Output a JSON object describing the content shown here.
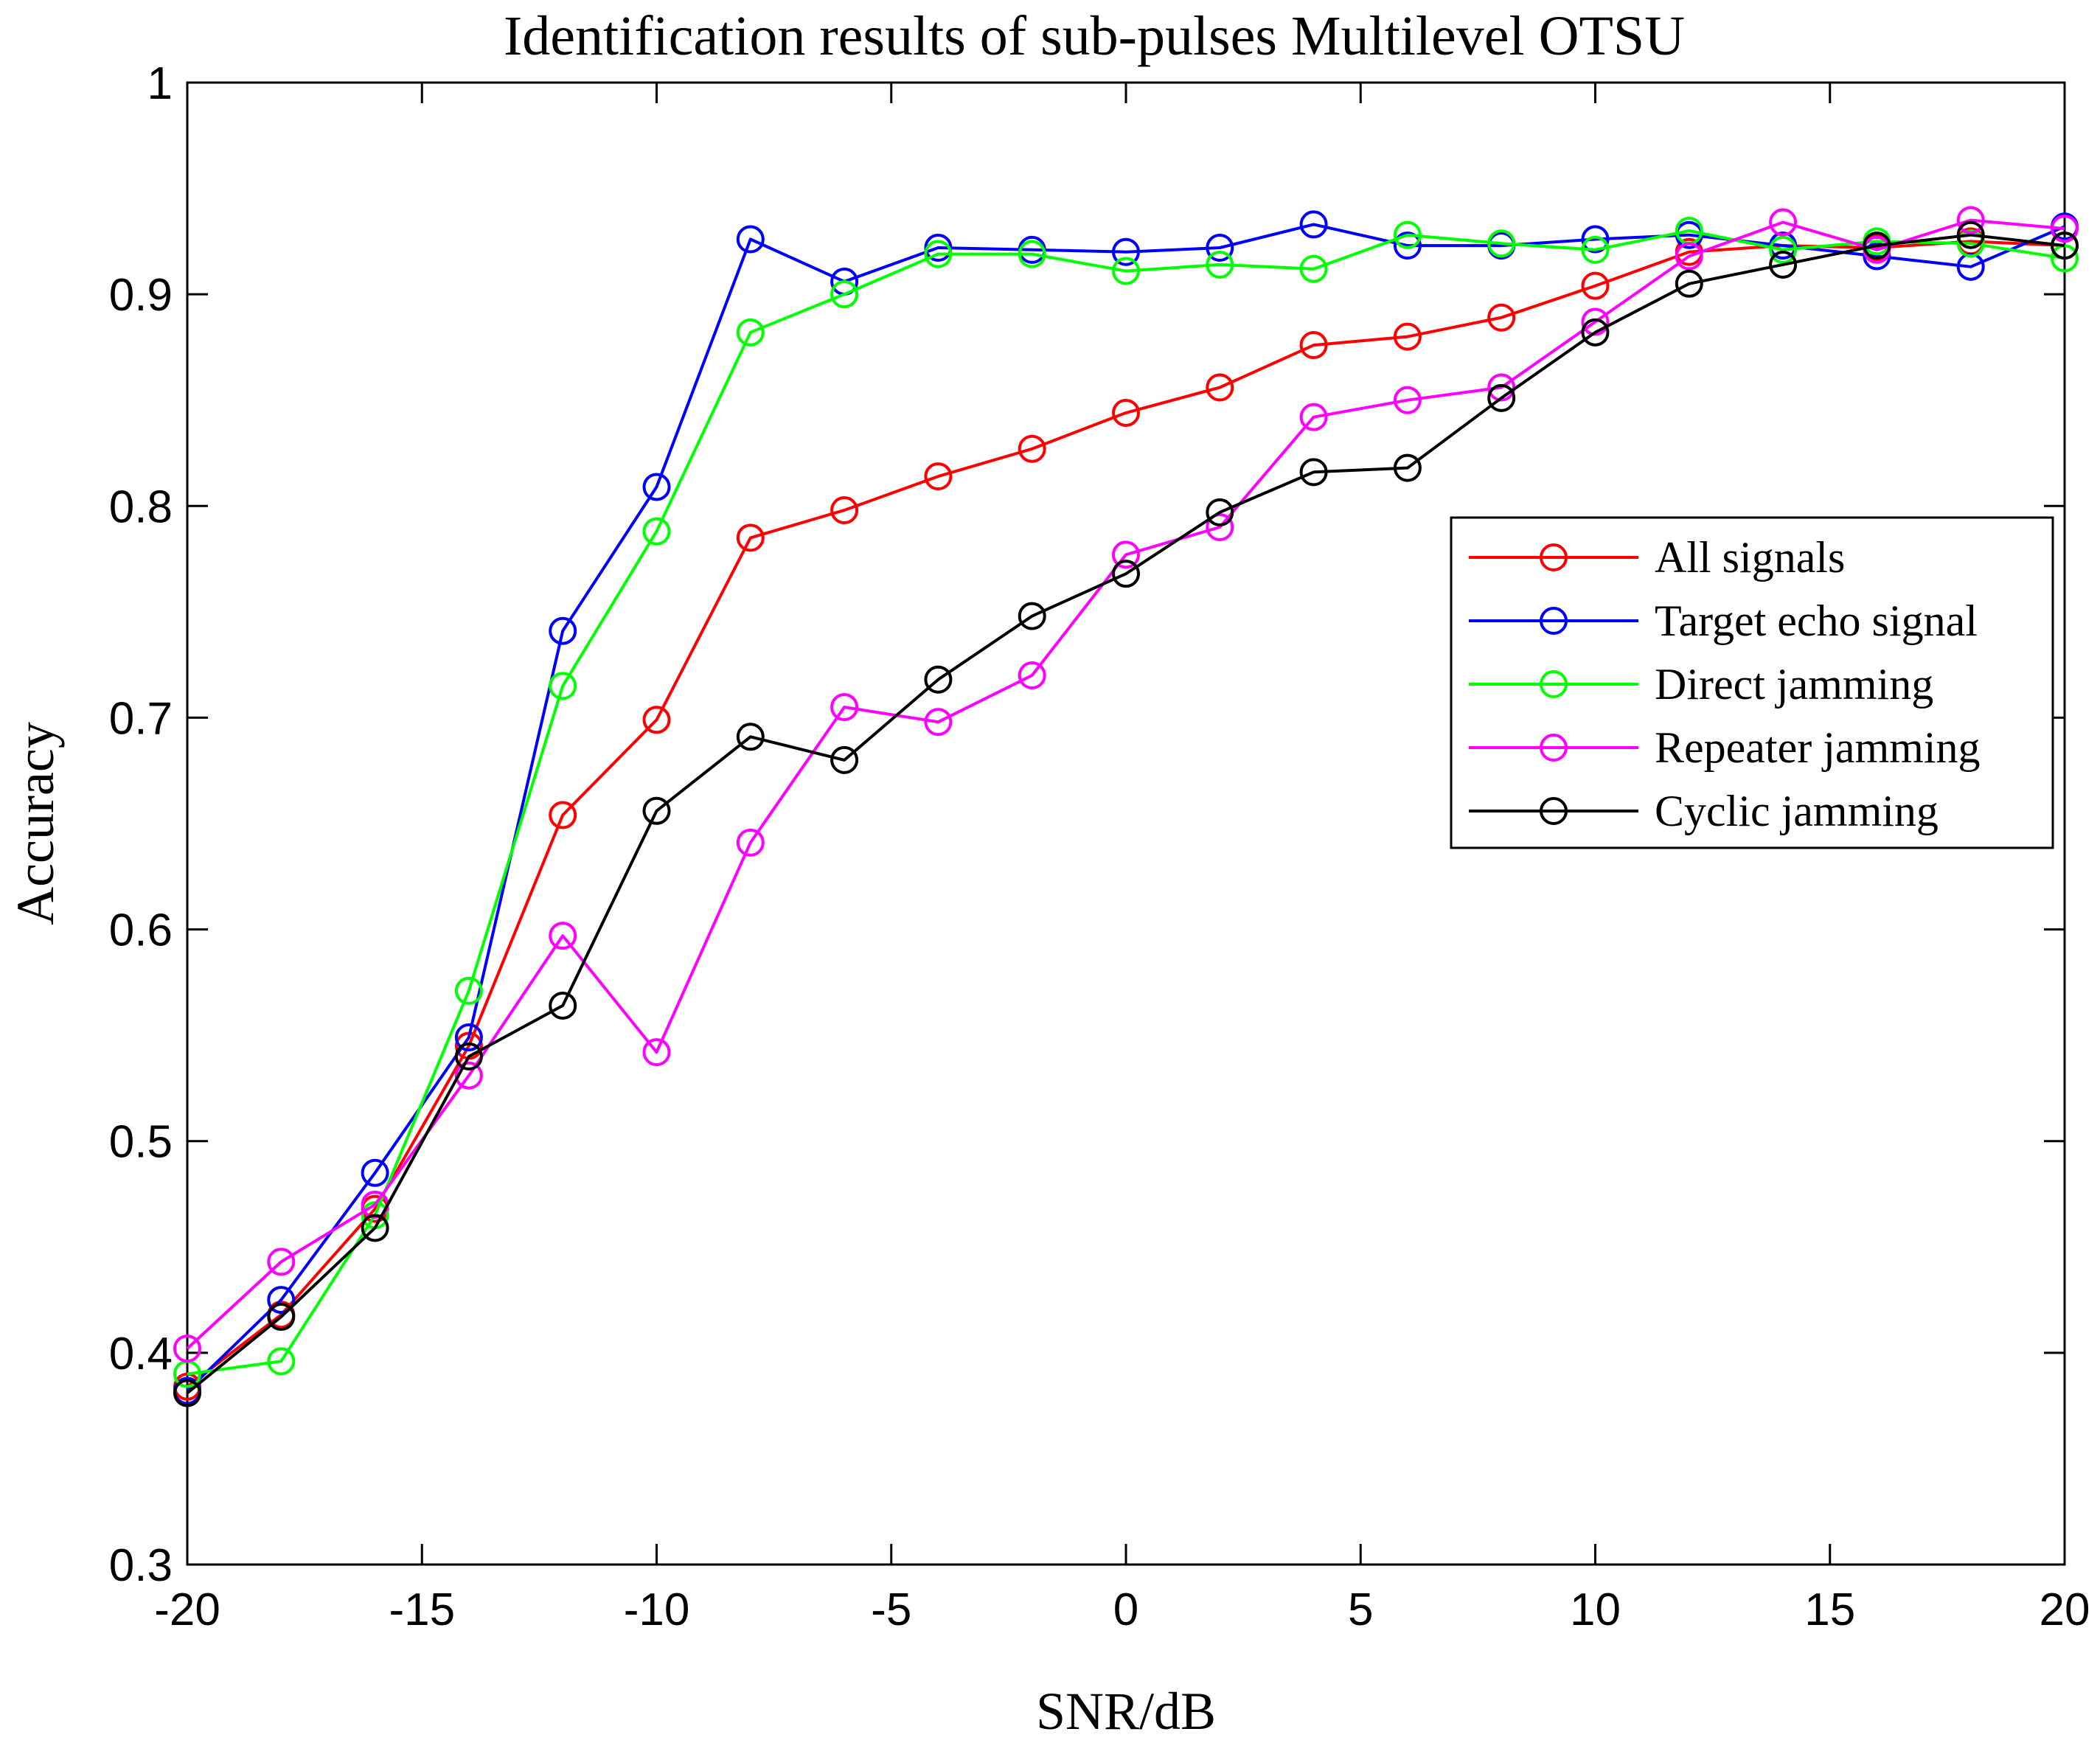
{
  "chart_data": {
    "type": "line",
    "title": "Identification results of sub-pulses Multilevel OTSU",
    "xlabel": "SNR/dB",
    "ylabel": "Accuracy",
    "xlim": [
      -20,
      20
    ],
    "ylim": [
      0.3,
      1
    ],
    "xticks": [
      -20,
      -15,
      -10,
      -5,
      0,
      5,
      10,
      15,
      20
    ],
    "xtick_labels": [
      "-20",
      "-15",
      "-10",
      "-5",
      "0",
      "5",
      "10",
      "15",
      "20"
    ],
    "yticks": [
      0.3,
      0.4,
      0.5,
      0.6,
      0.7,
      0.8,
      0.9,
      1
    ],
    "ytick_labels": [
      "0.3",
      "0.4",
      "0.5",
      "0.6",
      "0.7",
      "0.8",
      "0.9",
      "1"
    ],
    "grid": false,
    "legend_position": "right",
    "x": [
      -20,
      -18,
      -16,
      -14,
      -12,
      -10,
      -8,
      -6,
      -4,
      -2,
      0,
      2,
      4,
      6,
      8,
      10,
      12,
      14,
      16,
      18,
      20
    ],
    "series": [
      {
        "name": "All signals",
        "color": "#ff0000",
        "marker": "circle",
        "values": [
          0.384,
          0.418,
          0.468,
          0.545,
          0.654,
          0.699,
          0.785,
          0.798,
          0.814,
          0.827,
          0.844,
          0.856,
          0.876,
          0.88,
          0.889,
          0.904,
          0.92,
          0.923,
          0.922,
          0.925,
          0.923
        ]
      },
      {
        "name": "Target echo signal",
        "color": "#0000ff",
        "marker": "circle",
        "values": [
          0.382,
          0.425,
          0.485,
          0.549,
          0.741,
          0.809,
          0.926,
          0.906,
          0.922,
          0.921,
          0.92,
          0.922,
          0.933,
          0.923,
          0.923,
          0.926,
          0.928,
          0.923,
          0.918,
          0.913,
          0.932
        ]
      },
      {
        "name": "Direct jamming",
        "color": "#00ff00",
        "marker": "circle",
        "values": [
          0.39,
          0.396,
          0.465,
          0.571,
          0.715,
          0.788,
          0.882,
          0.9,
          0.919,
          0.919,
          0.911,
          0.914,
          0.912,
          0.928,
          0.924,
          0.921,
          0.93,
          0.921,
          0.925,
          0.924,
          0.917
        ]
      },
      {
        "name": "Repeater jamming",
        "color": "#ff00ff",
        "marker": "circle",
        "values": [
          0.402,
          0.443,
          0.47,
          0.531,
          0.597,
          0.542,
          0.641,
          0.705,
          0.698,
          0.72,
          0.777,
          0.79,
          0.842,
          0.85,
          0.856,
          0.887,
          0.918,
          0.934,
          0.921,
          0.935,
          0.931
        ]
      },
      {
        "name": "Cyclic jamming",
        "color": "#000000",
        "marker": "circle",
        "values": [
          0.381,
          0.417,
          0.459,
          0.54,
          0.564,
          0.656,
          0.691,
          0.68,
          0.718,
          0.748,
          0.768,
          0.797,
          0.816,
          0.818,
          0.851,
          0.882,
          0.905,
          0.914,
          0.923,
          0.928,
          0.923
        ]
      }
    ]
  }
}
